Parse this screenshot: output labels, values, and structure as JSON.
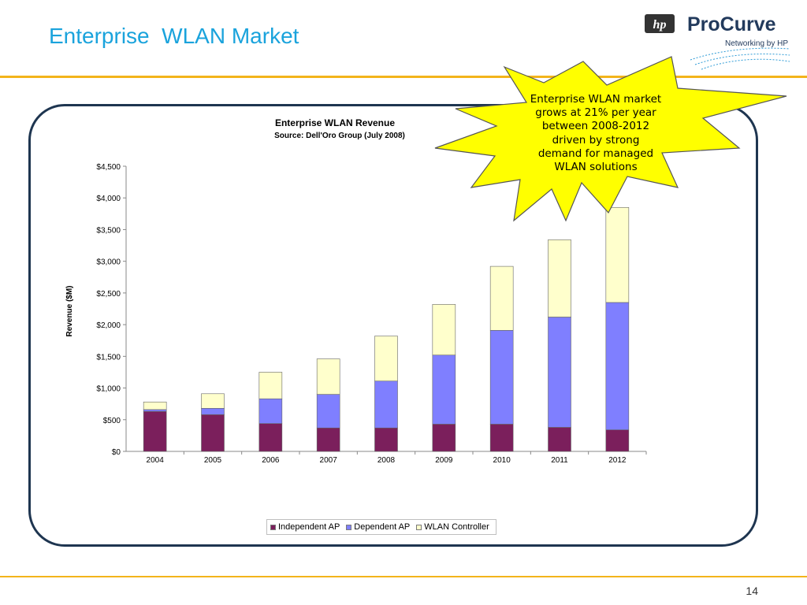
{
  "slide": {
    "title": "Enterprise  WLAN Market",
    "page_number": "14"
  },
  "logo": {
    "brand": "ProCurve",
    "tagline": "Networking by HP",
    "hp_mark": "hp"
  },
  "callout": {
    "text": "Enterprise WLAN market grows at 21% per year between 2008-2012 driven by strong demand for managed WLAN solutions"
  },
  "colors": {
    "title": "#1aa3dc",
    "rule": "#f3b41b",
    "panel_border": "#1e3550",
    "independent_ap": "#7b1f5c",
    "dependent_ap": "#7f7fff",
    "wlan_controller": "#ffffcc",
    "callout_fill": "#ffff00"
  },
  "chart_data": {
    "type": "bar",
    "stacked": true,
    "title": "Enterprise WLAN Revenue",
    "subtitle": "Source: Dell'Oro Group (July 2008)",
    "xlabel": "",
    "ylabel": "Revenue ($M)",
    "ylim": [
      0,
      4500
    ],
    "yticks": [
      "$0",
      "$500",
      "$1,000",
      "$1,500",
      "$2,000",
      "$2,500",
      "$3,000",
      "$3,500",
      "$4,000",
      "$4,500"
    ],
    "categories": [
      "2004",
      "2005",
      "2006",
      "2007",
      "2008",
      "2009",
      "2010",
      "2011",
      "2012"
    ],
    "series": [
      {
        "name": "Independent AP",
        "color": "#7b1f5c",
        "values": [
          630,
          580,
          440,
          370,
          370,
          430,
          430,
          380,
          340
        ]
      },
      {
        "name": "Dependent AP",
        "color": "#7f7fff",
        "values": [
          30,
          100,
          390,
          530,
          740,
          1090,
          1480,
          1740,
          2010
        ]
      },
      {
        "name": "WLAN Controller",
        "color": "#ffffcc",
        "values": [
          120,
          230,
          420,
          560,
          710,
          800,
          1010,
          1220,
          1500
        ]
      }
    ],
    "legend_position": "bottom",
    "grid": false
  }
}
